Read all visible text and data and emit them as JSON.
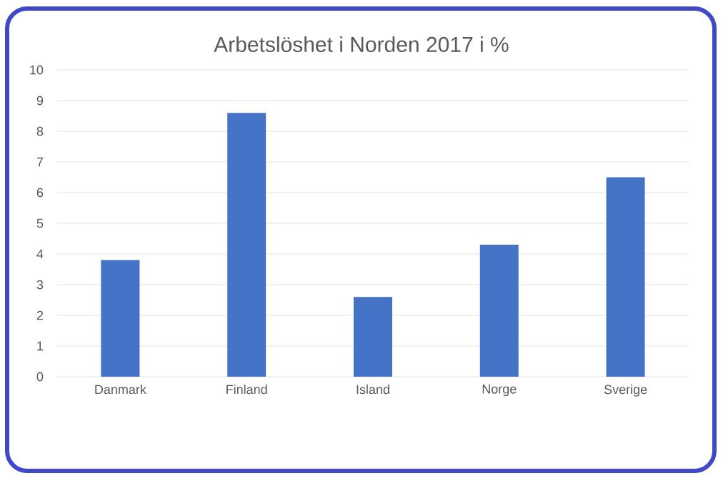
{
  "chart_data": {
    "type": "bar",
    "title": "Arbetslöshet i Norden 2017 i %",
    "categories": [
      "Danmark",
      "Finland",
      "Island",
      "Norge",
      "Sverige"
    ],
    "values": [
      3.8,
      8.6,
      2.6,
      4.3,
      6.5
    ],
    "color": "#4472c4",
    "ylim": [
      0,
      10
    ],
    "yticks": [
      0,
      1,
      2,
      3,
      4,
      5,
      6,
      7,
      8,
      9,
      10
    ],
    "grid": "y"
  }
}
